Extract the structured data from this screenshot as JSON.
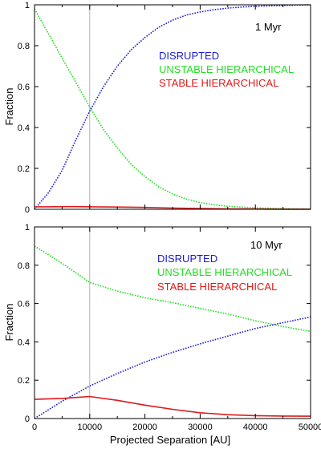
{
  "chart_data": [
    {
      "type": "line",
      "annotation": "1 Myr",
      "xlabel": "",
      "ylabel": "Fraction",
      "xlim": [
        0,
        50000
      ],
      "ylim": [
        0,
        1
      ],
      "xticks": [
        0,
        10000,
        20000,
        30000,
        40000,
        50000
      ],
      "yticks": [
        0,
        0.2,
        0.4,
        0.6,
        0.8,
        1
      ],
      "xticklabels": [
        "0",
        "10000",
        "20000",
        "30000",
        "40000",
        "50000"
      ],
      "yticklabels": [
        "0",
        "0.2",
        "0.4",
        "0.6",
        "0.8",
        "1"
      ],
      "reference_line_x": 10000,
      "series": [
        {
          "name": "DISRUPTED",
          "color": "#1a1ad6",
          "style": "dotted",
          "x": [
            0,
            2500,
            5000,
            7500,
            10000,
            12500,
            15000,
            17500,
            20000,
            22500,
            25000,
            27500,
            30000,
            32500,
            35000,
            37500,
            40000,
            42500,
            45000,
            47500,
            50000
          ],
          "y": [
            0.0,
            0.08,
            0.19,
            0.34,
            0.48,
            0.6,
            0.7,
            0.78,
            0.84,
            0.89,
            0.925,
            0.95,
            0.965,
            0.976,
            0.984,
            0.989,
            0.993,
            0.995,
            0.997,
            0.999,
            1.0
          ]
        },
        {
          "name": "UNSTABLE HIERARCHICAL",
          "color": "#22e022",
          "style": "dotted",
          "x": [
            0,
            2500,
            5000,
            7500,
            10000,
            12500,
            15000,
            17500,
            20000,
            22500,
            25000,
            27500,
            30000,
            32500,
            35000,
            37500,
            40000,
            42500,
            45000,
            47500,
            50000
          ],
          "y": [
            0.98,
            0.86,
            0.74,
            0.62,
            0.5,
            0.39,
            0.3,
            0.22,
            0.16,
            0.11,
            0.075,
            0.05,
            0.033,
            0.022,
            0.015,
            0.01,
            0.007,
            0.005,
            0.003,
            0.002,
            0.001
          ]
        },
        {
          "name": "STABLE HIERARCHICAL",
          "color": "#e01818",
          "style": "solid",
          "x": [
            0,
            2500,
            5000,
            7500,
            10000,
            15000,
            20000,
            25000,
            30000,
            35000,
            40000,
            45000,
            50000
          ],
          "y": [
            0.012,
            0.012,
            0.013,
            0.013,
            0.012,
            0.011,
            0.009,
            0.006,
            0.004,
            0.002,
            0.001,
            0.0005,
            0.0
          ]
        }
      ]
    },
    {
      "type": "line",
      "annotation": "10 Myr",
      "xlabel": "Projected Separation [AU]",
      "ylabel": "Fraction",
      "xlim": [
        0,
        50000
      ],
      "ylim": [
        0,
        1
      ],
      "xticks": [
        0,
        10000,
        20000,
        30000,
        40000,
        50000
      ],
      "yticks": [
        0,
        0.2,
        0.4,
        0.6,
        0.8,
        1
      ],
      "xticklabels": [
        "0",
        "10000",
        "20000",
        "30000",
        "40000",
        "50000"
      ],
      "yticklabels": [
        "0",
        "0.2",
        "0.4",
        "0.6",
        "0.8",
        "1"
      ],
      "reference_line_x": 10000,
      "series": [
        {
          "name": "DISRUPTED",
          "color": "#1a1ad6",
          "style": "dotted",
          "x": [
            0,
            5000,
            10000,
            15000,
            20000,
            25000,
            30000,
            35000,
            40000,
            45000,
            50000
          ],
          "y": [
            0.0,
            0.09,
            0.17,
            0.235,
            0.295,
            0.345,
            0.39,
            0.43,
            0.47,
            0.5,
            0.53
          ]
        },
        {
          "name": "UNSTABLE HIERARCHICAL",
          "color": "#22e022",
          "style": "dotted",
          "x": [
            0,
            5000,
            10000,
            15000,
            20000,
            25000,
            30000,
            35000,
            40000,
            45000,
            50000
          ],
          "y": [
            0.9,
            0.81,
            0.71,
            0.665,
            0.63,
            0.605,
            0.575,
            0.545,
            0.51,
            0.48,
            0.455
          ]
        },
        {
          "name": "STABLE HIERARCHICAL",
          "color": "#e01818",
          "style": "solid",
          "x": [
            0,
            5000,
            10000,
            15000,
            20000,
            25000,
            30000,
            35000,
            40000,
            45000,
            50000
          ],
          "y": [
            0.1,
            0.105,
            0.115,
            0.095,
            0.07,
            0.048,
            0.03,
            0.02,
            0.015,
            0.013,
            0.012
          ]
        }
      ]
    }
  ]
}
